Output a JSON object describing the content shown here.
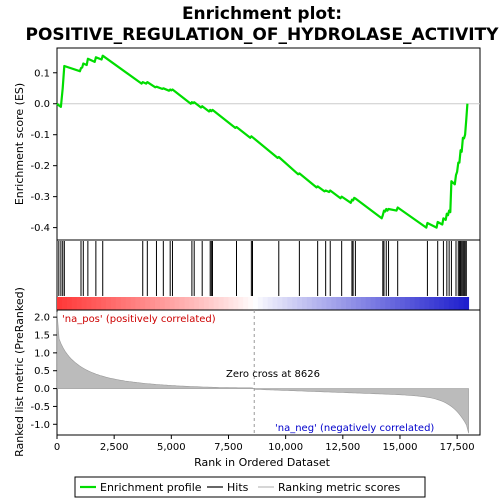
{
  "chart_data": {
    "type": "line",
    "title_line1": "Enrichment plot:",
    "title_line2": "POSITIVE_REGULATION_OF_HYDROLASE_ACTIVITY",
    "xlabel": "Rank in Ordered Dataset",
    "ylabel_top": "Enrichment score (ES)",
    "ylabel_bottom": "Ranked list metric (PreRanked)",
    "xlim": [
      0,
      18500
    ],
    "es_ylim": [
      -0.44,
      0.18
    ],
    "metric_ylim": [
      -1.3,
      2.2
    ],
    "x_ticks": [
      0,
      2500,
      5000,
      7500,
      10000,
      12500,
      15000,
      17500
    ],
    "x_tick_labels": [
      "0",
      "2,500",
      "5,000",
      "7,500",
      "10,000",
      "12,500",
      "15,000",
      "17,500"
    ],
    "es_ticks": [
      0.1,
      0.0,
      -0.1,
      -0.2,
      -0.3,
      -0.4
    ],
    "es_tick_labels": [
      "0.1",
      "0.0",
      "-0.1",
      "-0.2",
      "-0.3",
      "-0.4"
    ],
    "metric_ticks": [
      2.0,
      1.5,
      1.0,
      0.5,
      0.0,
      -0.5,
      -1.0
    ],
    "metric_tick_labels": [
      "2.0",
      "1.5",
      "1.0",
      "0.5",
      "0.0",
      "-0.5",
      "-1.0"
    ],
    "hits": [
      80,
      170,
      250,
      320,
      1050,
      1150,
      1350,
      1700,
      2000,
      3750,
      3950,
      4350,
      4650,
      4950,
      5050,
      5900,
      6000,
      6350,
      6700,
      6750,
      6800,
      7850,
      8500,
      8550,
      9700,
      10600,
      11400,
      11750,
      11950,
      12450,
      12900,
      12950,
      13050,
      14250,
      14300,
      14400,
      14500,
      14900,
      16200,
      16650,
      16900,
      17050,
      17150,
      17250,
      17450,
      17550,
      17600,
      17650,
      17700,
      17750,
      17800,
      17850,
      17900
    ],
    "es_x": [
      0,
      80,
      170,
      250,
      320,
      1000,
      1050,
      1100,
      1150,
      1300,
      1350,
      1650,
      1700,
      1950,
      2000,
      3700,
      3750,
      3900,
      3950,
      4300,
      4350,
      4600,
      4650,
      4900,
      4950,
      5000,
      5050,
      5850,
      5900,
      5950,
      6000,
      6300,
      6350,
      6650,
      6700,
      6750,
      6800,
      7800,
      7850,
      8450,
      8500,
      8550,
      9650,
      9700,
      10550,
      10600,
      11350,
      11400,
      11700,
      11750,
      11900,
      11950,
      12400,
      12450,
      12850,
      12900,
      12950,
      13000,
      13050,
      14200,
      14250,
      14300,
      14350,
      14400,
      14450,
      14500,
      14850,
      14900,
      16150,
      16200,
      16600,
      16650,
      16850,
      16900,
      17000,
      17050,
      17100,
      17150,
      17200,
      17250,
      17400,
      17450,
      17500,
      17550,
      17600,
      17650,
      17700,
      17750,
      17800,
      17850,
      17900,
      17950
    ],
    "es_y": [
      0.0,
      -0.005,
      -0.01,
      0.05,
      0.122,
      0.105,
      0.115,
      0.117,
      0.13,
      0.125,
      0.145,
      0.135,
      0.15,
      0.143,
      0.155,
      0.065,
      0.07,
      0.065,
      0.07,
      0.053,
      0.055,
      0.048,
      0.05,
      0.042,
      0.046,
      0.043,
      0.046,
      0.0,
      0.005,
      0.002,
      0.005,
      -0.012,
      -0.008,
      -0.025,
      -0.02,
      -0.024,
      -0.02,
      -0.078,
      -0.075,
      -0.11,
      -0.105,
      -0.108,
      -0.175,
      -0.172,
      -0.228,
      -0.225,
      -0.27,
      -0.267,
      -0.283,
      -0.28,
      -0.285,
      -0.28,
      -0.305,
      -0.3,
      -0.32,
      -0.31,
      -0.312,
      -0.304,
      -0.306,
      -0.37,
      -0.36,
      -0.345,
      -0.348,
      -0.34,
      -0.345,
      -0.34,
      -0.345,
      -0.335,
      -0.4,
      -0.385,
      -0.4,
      -0.382,
      -0.39,
      -0.37,
      -0.375,
      -0.355,
      -0.36,
      -0.345,
      -0.35,
      -0.25,
      -0.26,
      -0.23,
      -0.22,
      -0.19,
      -0.19,
      -0.15,
      -0.155,
      -0.11,
      -0.112,
      -0.1,
      -0.05,
      0.0
    ]
  },
  "annotations": {
    "pos_label": "'na_pos' (positively correlated)",
    "neg_label": "'na_neg' (negatively correlated)",
    "zero_cross": "Zero cross at 8626",
    "zero_cross_value": 8626
  },
  "legend": {
    "items": [
      "Enrichment profile",
      "Hits",
      "Ranking metric scores"
    ]
  },
  "colors": {
    "enrichment_line": "#00dd00",
    "pos_text": "#cc0000",
    "neg_text": "#0000cc",
    "metric_fill": "#bbbbbb",
    "hit_line": "#000000",
    "zero_cross_line": "#999999"
  }
}
